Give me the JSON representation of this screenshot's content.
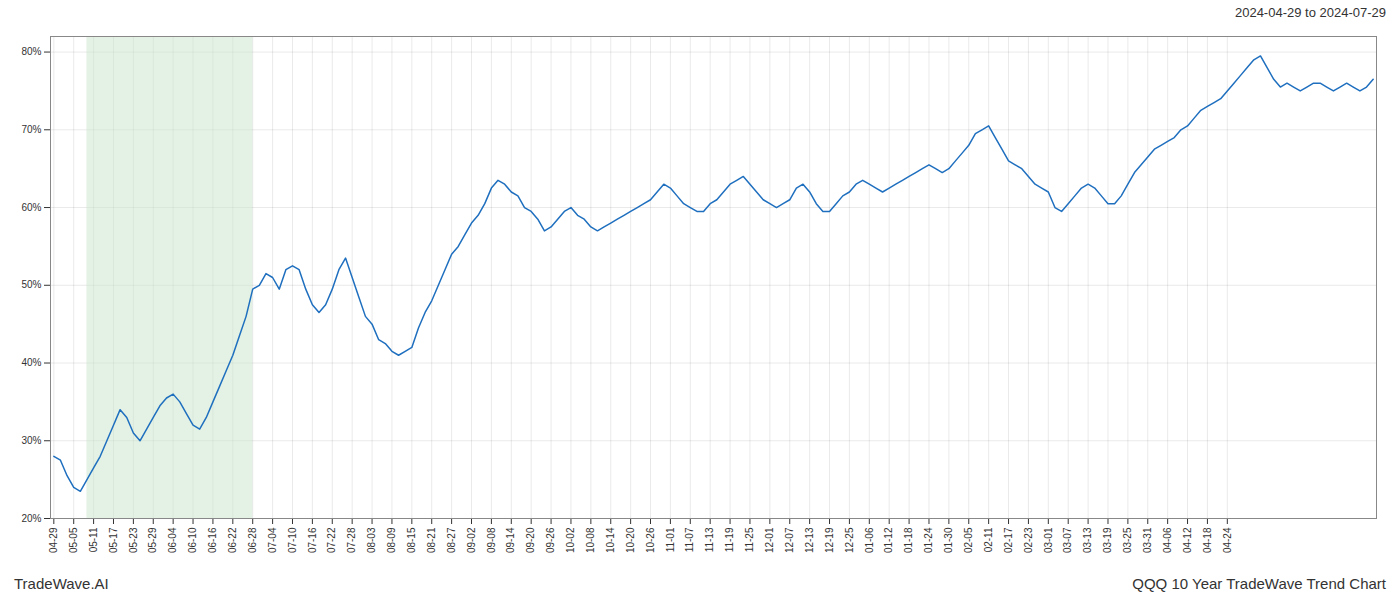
{
  "chart_data": {
    "type": "line",
    "title": "QQQ 10 Year TradeWave Trend Chart",
    "subtitle": "2024-04-29 to 2024-07-29",
    "annotations": [
      "TradeWave.AI"
    ],
    "color": "#1f6fbf",
    "grid": true,
    "shade": {
      "start": 5,
      "end": 30,
      "color": "#c8e6c9"
    },
    "ylim": [
      20,
      82
    ],
    "yticks": [
      {
        "value": 20,
        "label": "20%"
      },
      {
        "value": 30,
        "label": "30%"
      },
      {
        "value": 40,
        "label": "40%"
      },
      {
        "value": 50,
        "label": "50%"
      },
      {
        "value": 60,
        "label": "60%"
      },
      {
        "value": 70,
        "label": "70%"
      },
      {
        "value": 80,
        "label": "80%"
      }
    ],
    "categories": [
      "04-29",
      null,
      null,
      "05-05",
      null,
      null,
      "05-11",
      null,
      null,
      "05-17",
      null,
      null,
      "05-23",
      null,
      null,
      "05-29",
      null,
      null,
      "06-04",
      null,
      null,
      "06-10",
      null,
      null,
      "06-16",
      null,
      null,
      "06-22",
      null,
      null,
      "06-28",
      null,
      null,
      "07-04",
      null,
      null,
      "07-10",
      null,
      null,
      "07-16",
      null,
      null,
      "07-22",
      null,
      null,
      "07-28",
      null,
      null,
      "08-03",
      null,
      null,
      "08-09",
      null,
      null,
      "08-15",
      null,
      null,
      "08-21",
      null,
      null,
      "08-27",
      null,
      null,
      "09-02",
      null,
      null,
      "09-08",
      null,
      null,
      "09-14",
      null,
      null,
      "09-20",
      null,
      null,
      "09-26",
      null,
      null,
      "10-02",
      null,
      null,
      "10-08",
      null,
      null,
      "10-14",
      null,
      null,
      "10-20",
      null,
      null,
      "10-26",
      null,
      null,
      "11-01",
      null,
      null,
      "11-07",
      null,
      null,
      "11-13",
      null,
      null,
      "11-19",
      null,
      null,
      "11-25",
      null,
      null,
      "12-01",
      null,
      null,
      "12-07",
      null,
      null,
      "12-13",
      null,
      null,
      "12-19",
      null,
      null,
      "12-25",
      null,
      null,
      "01-06",
      null,
      null,
      "01-12",
      null,
      null,
      "01-18",
      null,
      null,
      "01-24",
      null,
      null,
      "01-30",
      null,
      null,
      "02-05",
      null,
      null,
      "02-11",
      null,
      null,
      "02-17",
      null,
      null,
      "02-23",
      null,
      null,
      "03-01",
      null,
      null,
      "03-07",
      null,
      null,
      "03-13",
      null,
      null,
      "03-19",
      null,
      null,
      "03-25",
      null,
      null,
      "03-31",
      null,
      null,
      "04-06",
      null,
      null,
      "04-12",
      null,
      null,
      "04-18",
      null,
      null,
      "04-24",
      null,
      null,
      null,
      null,
      null,
      null,
      null,
      null,
      null,
      null,
      null,
      null,
      null,
      null,
      null,
      null,
      null,
      null,
      null,
      null,
      null,
      null
    ],
    "values": [
      28.0,
      27.5,
      25.5,
      24.0,
      23.5,
      25.0,
      26.5,
      28.0,
      30.0,
      32.0,
      34.0,
      33.0,
      31.0,
      30.0,
      31.5,
      33.0,
      34.5,
      35.5,
      36.0,
      35.0,
      33.5,
      32.0,
      31.5,
      33.0,
      35.0,
      37.0,
      39.0,
      41.0,
      43.5,
      46.0,
      49.5,
      50.0,
      51.5,
      51.0,
      49.5,
      52.0,
      52.5,
      52.0,
      49.5,
      47.5,
      46.5,
      47.5,
      49.5,
      52.0,
      53.5,
      51.0,
      48.5,
      46.0,
      45.0,
      43.0,
      42.5,
      41.5,
      41.0,
      41.5,
      42.0,
      44.5,
      46.5,
      48.0,
      50.0,
      52.0,
      54.0,
      55.0,
      56.5,
      58.0,
      59.0,
      60.5,
      62.5,
      63.5,
      63.0,
      62.0,
      61.5,
      60.0,
      59.5,
      58.5,
      57.0,
      57.5,
      58.5,
      59.5,
      60.0,
      59.0,
      58.5,
      57.5,
      57.0,
      57.5,
      58.0,
      58.5,
      59.0,
      59.5,
      60.0,
      60.5,
      61.0,
      62.0,
      63.0,
      62.5,
      61.5,
      60.5,
      60.0,
      59.5,
      59.5,
      60.5,
      61.0,
      62.0,
      63.0,
      63.5,
      64.0,
      63.0,
      62.0,
      61.0,
      60.5,
      60.0,
      60.5,
      61.0,
      62.5,
      63.0,
      62.0,
      60.5,
      59.5,
      59.5,
      60.5,
      61.5,
      62.0,
      63.0,
      63.5,
      63.0,
      62.5,
      62.0,
      62.5,
      63.0,
      63.5,
      64.0,
      64.5,
      65.0,
      65.5,
      65.0,
      64.5,
      65.0,
      66.0,
      67.0,
      68.0,
      69.5,
      70.0,
      70.5,
      69.0,
      67.5,
      66.0,
      65.5,
      65.0,
      64.0,
      63.0,
      62.5,
      62.0,
      60.0,
      59.5,
      60.5,
      61.5,
      62.5,
      63.0,
      62.5,
      61.5,
      60.5,
      60.5,
      61.5,
      63.0,
      64.5,
      65.5,
      66.5,
      67.5,
      68.0,
      68.5,
      69.0,
      70.0,
      70.5,
      71.5,
      72.5,
      73.0,
      73.5,
      74.0,
      75.0,
      76.0,
      77.0,
      78.0,
      79.0,
      79.5,
      78.0,
      76.5,
      75.5,
      76.0,
      75.5,
      75.0,
      75.5,
      76.0,
      76.0,
      75.5,
      75.0,
      75.5,
      76.0,
      75.5,
      75.0,
      75.5,
      76.5
    ]
  }
}
